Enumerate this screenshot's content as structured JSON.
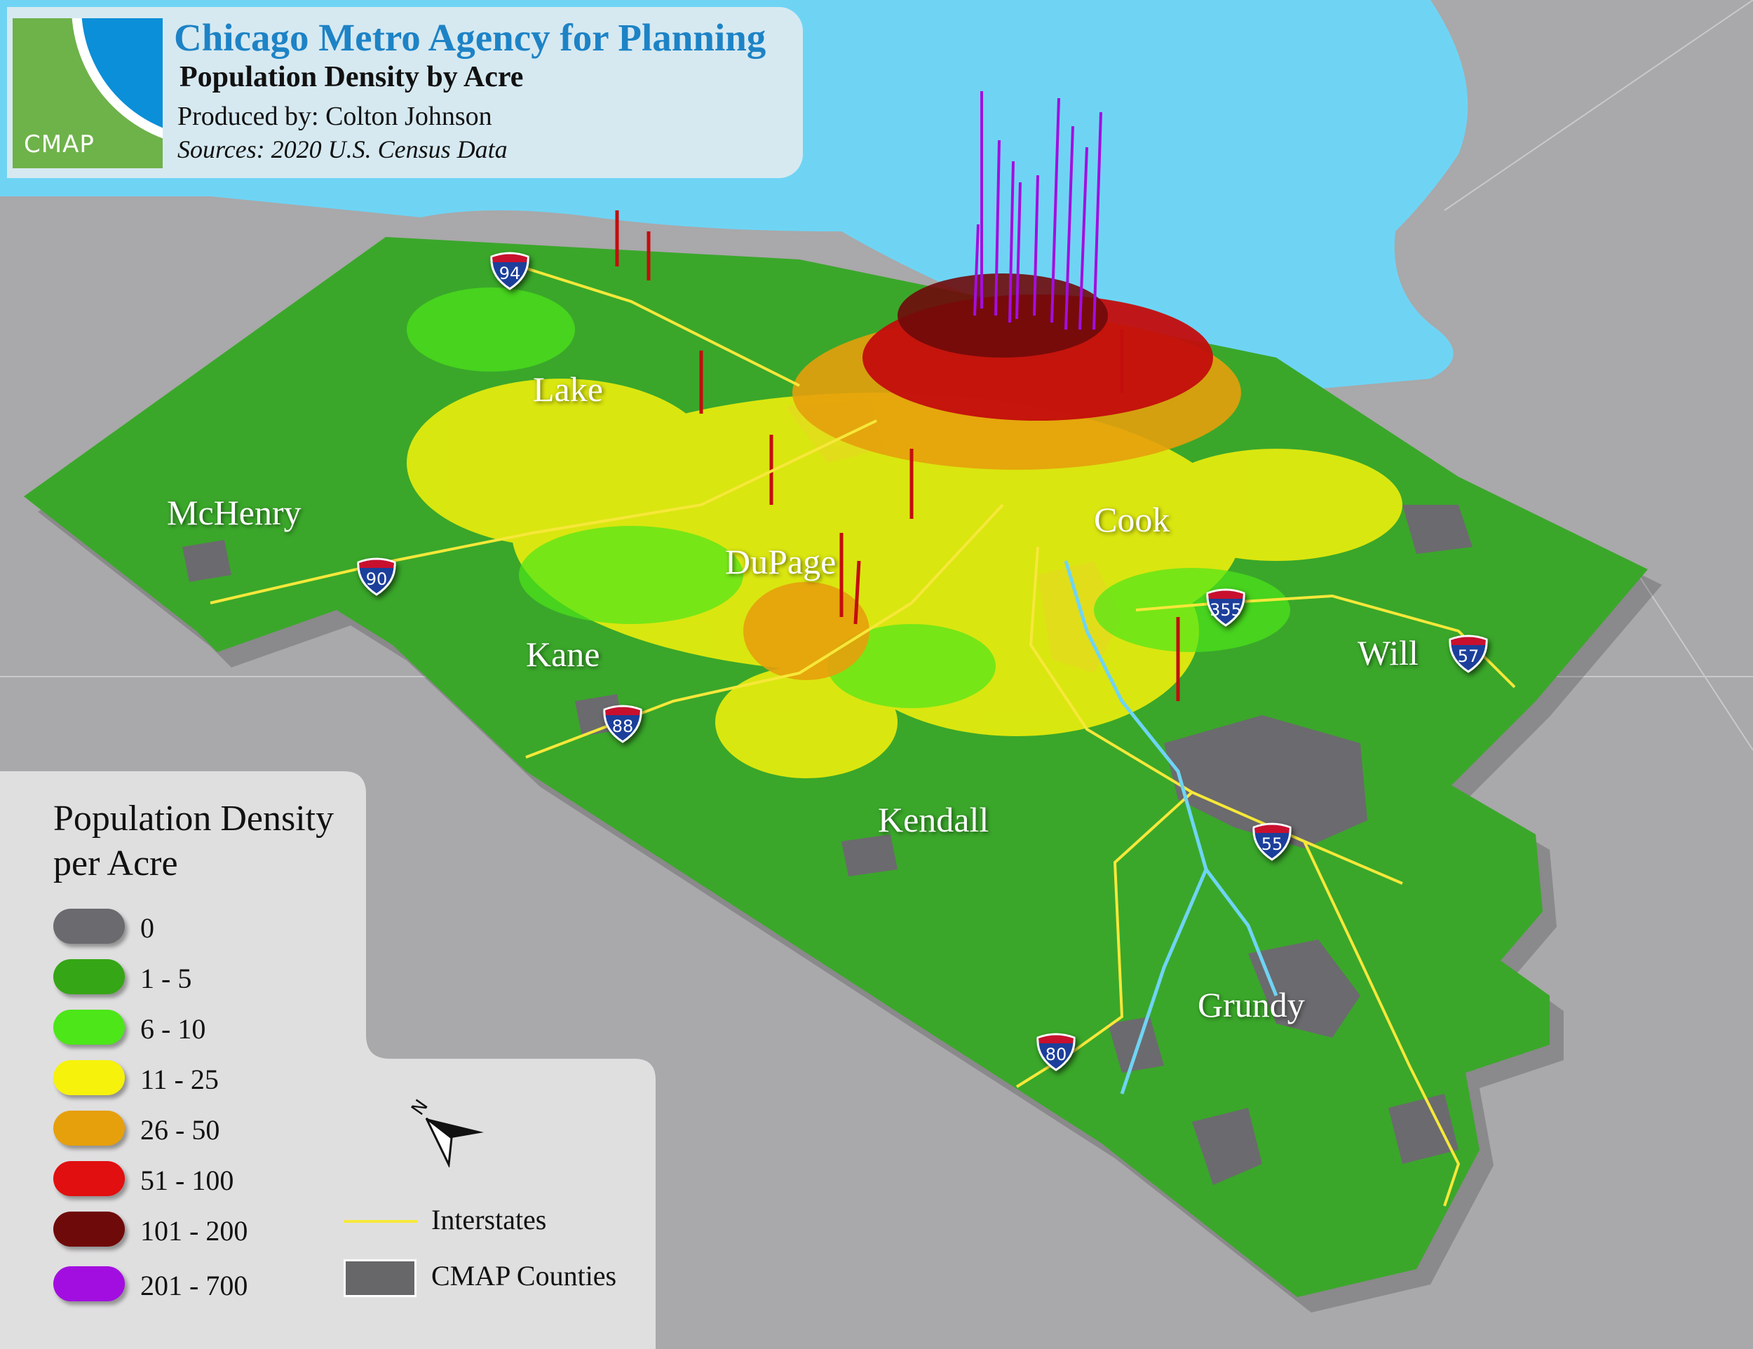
{
  "header": {
    "logo_text": "CMAP",
    "agency": "Chicago Metro Agency for Planning",
    "title": "Population Density by Acre",
    "produced_by": "Produced by: Colton Johnson",
    "sources": "Sources: 2020 U.S. Census Data"
  },
  "counties": [
    "Lake",
    "McHenry",
    "Cook",
    "DuPage",
    "Kane",
    "Will",
    "Kendall",
    "Grundy"
  ],
  "interstates": [
    "94",
    "90",
    "355",
    "57",
    "88",
    "55",
    "80"
  ],
  "legend": {
    "title": "Population Density per Acre",
    "classes": [
      {
        "label": "0",
        "color": "#6b6a6e"
      },
      {
        "label": "1 - 5",
        "color": "#35a615"
      },
      {
        "label": "6 - 10",
        "color": "#4de619"
      },
      {
        "label": "11 - 25",
        "color": "#f6f20c"
      },
      {
        "label": "26 - 50",
        "color": "#e6a00c"
      },
      {
        "label": "51 - 100",
        "color": "#e10f0f"
      },
      {
        "label": "101 - 200",
        "color": "#6f0a0a"
      },
      {
        "label": "201 - 700",
        "color": "#a30ee0"
      }
    ]
  },
  "reference": {
    "interstates_label": "Interstates",
    "counties_label": "CMAP Counties",
    "interstate_color": "#f6e83a",
    "county_color": "#676769"
  },
  "colors": {
    "background": "#a9a8aa",
    "lake": "#6fd4f4",
    "land": "#3aa72a"
  }
}
